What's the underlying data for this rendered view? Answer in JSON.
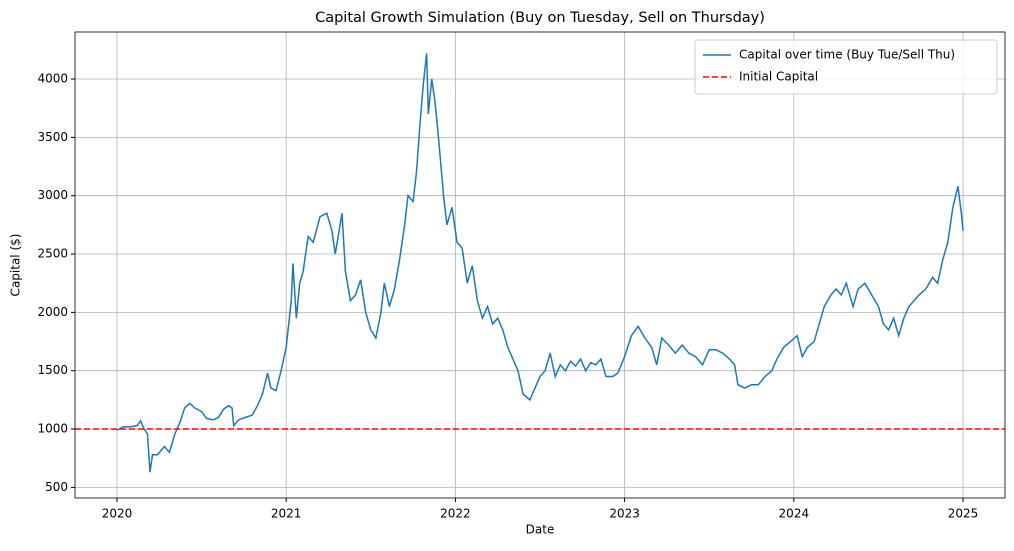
{
  "chart_data": {
    "type": "line",
    "title": "Capital Growth Simulation (Buy on Tuesday, Sell on Thursday)",
    "xlabel": "Date",
    "ylabel": "Capital ($)",
    "x": [
      2020.0,
      2020.04,
      2020.08,
      2020.12,
      2020.14,
      2020.16,
      2020.18,
      2020.195,
      2020.21,
      2020.24,
      2020.28,
      2020.31,
      2020.34,
      2020.37,
      2020.4,
      2020.43,
      2020.46,
      2020.5,
      2020.53,
      2020.57,
      2020.6,
      2020.63,
      2020.66,
      2020.68,
      2020.69,
      2020.72,
      2020.76,
      2020.8,
      2020.83,
      2020.86,
      2020.89,
      2020.91,
      2020.94,
      2020.97,
      2021.0,
      2021.03,
      2021.04,
      2021.06,
      2021.08,
      2021.1,
      2021.13,
      2021.16,
      2021.2,
      2021.24,
      2021.27,
      2021.29,
      2021.33,
      2021.35,
      2021.38,
      2021.41,
      2021.44,
      2021.47,
      2021.5,
      2021.53,
      2021.56,
      2021.58,
      2021.61,
      2021.64,
      2021.67,
      2021.7,
      2021.72,
      2021.75,
      2021.77,
      2021.79,
      2021.81,
      2021.83,
      2021.84,
      2021.86,
      2021.88,
      2021.9,
      2021.93,
      2021.95,
      2021.98,
      2022.01,
      2022.04,
      2022.07,
      2022.1,
      2022.13,
      2022.16,
      2022.19,
      2022.22,
      2022.25,
      2022.28,
      2022.31,
      2022.34,
      2022.37,
      2022.4,
      2022.44,
      2022.47,
      2022.5,
      2022.53,
      2022.56,
      2022.59,
      2022.62,
      2022.65,
      2022.68,
      2022.71,
      2022.74,
      2022.77,
      2022.8,
      2022.83,
      2022.86,
      2022.89,
      2022.93,
      2022.96,
      2023.0,
      2023.04,
      2023.08,
      2023.12,
      2023.16,
      2023.19,
      2023.22,
      2023.26,
      2023.3,
      2023.34,
      2023.38,
      2023.42,
      2023.46,
      2023.5,
      2023.54,
      2023.58,
      2023.62,
      2023.65,
      2023.67,
      2023.71,
      2023.75,
      2023.79,
      2023.83,
      2023.87,
      2023.9,
      2023.94,
      2023.98,
      2024.02,
      2024.05,
      2024.08,
      2024.12,
      2024.15,
      2024.18,
      2024.22,
      2024.25,
      2024.28,
      2024.31,
      2024.35,
      2024.38,
      2024.42,
      2024.46,
      2024.5,
      2024.53,
      2024.56,
      2024.59,
      2024.62,
      2024.65,
      2024.68,
      2024.71,
      2024.74,
      2024.78,
      2024.82,
      2024.85,
      2024.88,
      2024.91,
      2024.94,
      2024.97,
      2024.99,
      2025.0
    ],
    "series": [
      {
        "name": "Capital over time (Buy Tue/Sell Thu)",
        "color": "#1f77b4",
        "values": [
          990,
          1020,
          1020,
          1030,
          1070,
          1000,
          960,
          630,
          780,
          780,
          850,
          800,
          950,
          1050,
          1180,
          1220,
          1180,
          1150,
          1090,
          1080,
          1100,
          1170,
          1200,
          1180,
          1030,
          1080,
          1100,
          1120,
          1200,
          1300,
          1480,
          1350,
          1330,
          1500,
          1700,
          2100,
          2420,
          1950,
          2250,
          2350,
          2650,
          2600,
          2820,
          2850,
          2700,
          2500,
          2850,
          2350,
          2100,
          2150,
          2280,
          2000,
          1850,
          1780,
          2000,
          2250,
          2050,
          2200,
          2450,
          2750,
          3000,
          2950,
          3200,
          3600,
          3950,
          4220,
          3700,
          4000,
          3800,
          3500,
          3000,
          2750,
          2900,
          2600,
          2550,
          2250,
          2400,
          2100,
          1950,
          2050,
          1900,
          1950,
          1850,
          1700,
          1600,
          1500,
          1300,
          1250,
          1350,
          1450,
          1500,
          1650,
          1450,
          1550,
          1500,
          1580,
          1540,
          1600,
          1500,
          1570,
          1550,
          1600,
          1450,
          1450,
          1480,
          1620,
          1800,
          1880,
          1780,
          1700,
          1550,
          1780,
          1720,
          1650,
          1720,
          1650,
          1620,
          1550,
          1680,
          1680,
          1650,
          1600,
          1550,
          1380,
          1350,
          1380,
          1380,
          1450,
          1500,
          1600,
          1700,
          1750,
          1800,
          1620,
          1700,
          1750,
          1900,
          2050,
          2150,
          2200,
          2150,
          2250,
          2050,
          2200,
          2250,
          2150,
          2050,
          1900,
          1850,
          1950,
          1800,
          1950,
          2050,
          2100,
          2150,
          2200,
          2300,
          2250,
          2450,
          2600,
          2900,
          3080,
          2850,
          2700
        ]
      }
    ],
    "reference": {
      "name": "Initial Capital",
      "value": 1000,
      "color": "#ff0000"
    },
    "xlim": [
      2019.752,
      2025.248
    ],
    "xticks": [
      2020,
      2021,
      2022,
      2023,
      2024,
      2025
    ],
    "ylim": [
      409,
      4403
    ],
    "yticks": [
      500,
      1000,
      1500,
      2000,
      2500,
      3000,
      3500,
      4000
    ],
    "grid": true,
    "legend": "upper right"
  }
}
